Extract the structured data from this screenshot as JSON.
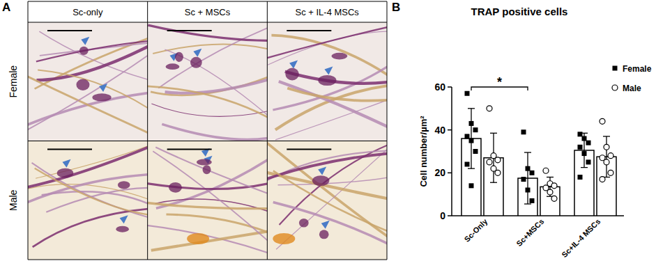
{
  "figure": {
    "panel_a": {
      "label": "A",
      "columns": [
        "Sc-only",
        "Sc + MSCs",
        "Sc + IL-4 MSCs"
      ],
      "rows": [
        "Female",
        "Male"
      ]
    },
    "panel_b_label": "B"
  },
  "chart_data": {
    "type": "bar",
    "title": "TRAP positive cells",
    "y_label": "Cell number/µm²",
    "categories": [
      "Sc-Only",
      "Sc+MSCs",
      "Sc+IL-4 MSCs"
    ],
    "series": [
      {
        "name": "Female",
        "color": "#ffffff",
        "marker": "square",
        "values": [
          36,
          17.5,
          30.5
        ],
        "errors": [
          14,
          12,
          8
        ],
        "points": [
          [
            57,
            43,
            40,
            37,
            35,
            30,
            24,
            14
          ],
          [
            39,
            22,
            20,
            17,
            12,
            7
          ],
          [
            38,
            36,
            34,
            32,
            29,
            25,
            18
          ]
        ]
      },
      {
        "name": "Male",
        "color": "#ffffff",
        "marker": "circle",
        "values": [
          27,
          13.5,
          27.5
        ],
        "errors": [
          11.5,
          4.5,
          9.5
        ],
        "points": [
          [
            50,
            28,
            26,
            25,
            22,
            20
          ],
          [
            21,
            15,
            14,
            13,
            11,
            8
          ],
          [
            44,
            32,
            28,
            27,
            25,
            20,
            17
          ]
        ]
      }
    ],
    "ylim": [
      0,
      60
    ],
    "yticks": [
      0,
      20,
      40,
      60
    ],
    "legend": "right",
    "annotations": [
      {
        "text": "*",
        "from": 0,
        "to": 1,
        "series": 0,
        "y": 60
      }
    ]
  }
}
